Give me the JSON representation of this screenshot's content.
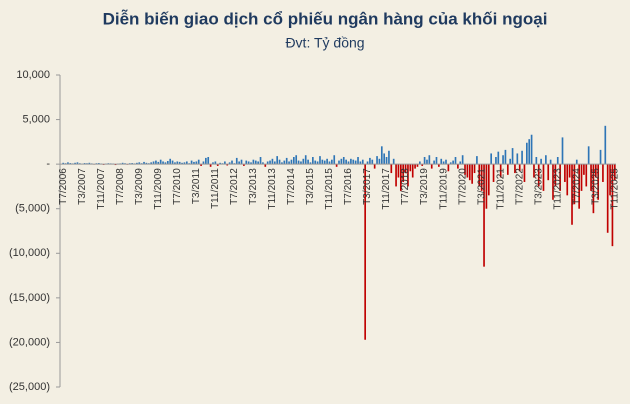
{
  "chart_data": {
    "type": "bar",
    "title": "Diễn biến giao dịch cổ phiếu ngân hàng của khối ngoại",
    "subtitle": "Đvt: Tỷ đồng",
    "colors": {
      "positive": "#2e75b6",
      "negative": "#c00000"
    },
    "ylim": [
      -25000,
      10000
    ],
    "yticks": [
      {
        "value": 10000,
        "label": "10,000"
      },
      {
        "value": 5000,
        "label": "5,000"
      },
      {
        "value": 0,
        "label": "-"
      },
      {
        "value": -5000,
        "label": "(5,000)"
      },
      {
        "value": -10000,
        "label": "(10,000)"
      },
      {
        "value": -15000,
        "label": "(15,000)"
      },
      {
        "value": -20000,
        "label": "(20,000)"
      },
      {
        "value": -25000,
        "label": "(25,000)"
      }
    ],
    "categories": [
      "T7/2006",
      null,
      null,
      null,
      null,
      null,
      null,
      null,
      "T3/2007",
      null,
      null,
      null,
      null,
      null,
      null,
      null,
      "T11/2007",
      null,
      null,
      null,
      null,
      null,
      null,
      null,
      "T7/2008",
      null,
      null,
      null,
      null,
      null,
      null,
      null,
      "T3/2009",
      null,
      null,
      null,
      null,
      null,
      null,
      null,
      "T11/2009",
      null,
      null,
      null,
      null,
      null,
      null,
      null,
      "T7/2010",
      null,
      null,
      null,
      null,
      null,
      null,
      null,
      "T3/2011",
      null,
      null,
      null,
      null,
      null,
      null,
      null,
      "T11/2011",
      null,
      null,
      null,
      null,
      null,
      null,
      null,
      "T7/2012",
      null,
      null,
      null,
      null,
      null,
      null,
      null,
      "T3/2013",
      null,
      null,
      null,
      null,
      null,
      null,
      null,
      "T11/2013",
      null,
      null,
      null,
      null,
      null,
      null,
      null,
      "T7/2014",
      null,
      null,
      null,
      null,
      null,
      null,
      null,
      "T3/2015",
      null,
      null,
      null,
      null,
      null,
      null,
      null,
      "T11/2015",
      null,
      null,
      null,
      null,
      null,
      null,
      null,
      "T7/2016",
      null,
      null,
      null,
      null,
      null,
      null,
      null,
      "T3/2017",
      null,
      null,
      null,
      null,
      null,
      null,
      null,
      "T11/2017",
      null,
      null,
      null,
      null,
      null,
      null,
      null,
      "T7/2018",
      null,
      null,
      null,
      null,
      null,
      null,
      null,
      "T3/2019",
      null,
      null,
      null,
      null,
      null,
      null,
      null,
      "T11/2019",
      null,
      null,
      null,
      null,
      null,
      null,
      null,
      "T7/2020",
      null,
      null,
      null,
      null,
      null,
      null,
      null,
      "T3/2021",
      null,
      null,
      null,
      null,
      null,
      null,
      null,
      "T11/2021",
      null,
      null,
      null,
      null,
      null,
      null,
      null,
      "T7/2022",
      null,
      null,
      null,
      null,
      null,
      null,
      null,
      "T3/2023",
      null,
      null,
      null,
      null,
      null,
      null,
      null,
      "T11/2023",
      null,
      null,
      null,
      null,
      null,
      null,
      null,
      "T7/2024",
      null,
      null,
      null,
      null,
      null,
      null,
      null,
      "T3/2025",
      null,
      null,
      null,
      null,
      null,
      null,
      null,
      "T11/2025"
    ],
    "values": [
      150,
      100,
      200,
      120,
      80,
      150,
      200,
      100,
      50,
      120,
      100,
      150,
      80,
      -50,
      100,
      120,
      60,
      -80,
      50,
      100,
      80,
      60,
      -100,
      50,
      80,
      150,
      100,
      -60,
      100,
      120,
      80,
      150,
      200,
      100,
      250,
      150,
      100,
      200,
      300,
      400,
      250,
      500,
      300,
      200,
      350,
      600,
      400,
      200,
      300,
      250,
      150,
      200,
      300,
      100,
      400,
      250,
      300,
      500,
      -200,
      300,
      700,
      800,
      -300,
      200,
      300,
      -200,
      150,
      100,
      300,
      -150,
      200,
      400,
      100,
      700,
      300,
      500,
      -200,
      400,
      300,
      200,
      500,
      400,
      300,
      800,
      200,
      -300,
      300,
      400,
      600,
      300,
      900,
      500,
      200,
      400,
      700,
      300,
      500,
      800,
      1000,
      400,
      300,
      600,
      1000,
      500,
      200,
      800,
      400,
      300,
      900,
      500,
      400,
      600,
      300,
      500,
      1000,
      -300,
      400,
      600,
      800,
      500,
      300,
      600,
      500,
      400,
      800,
      300,
      500,
      -19700,
      300,
      700,
      500,
      -500,
      900,
      600,
      2000,
      1200,
      800,
      1500,
      -1000,
      600,
      -2500,
      -1500,
      -3000,
      -2000,
      -1000,
      -2500,
      -800,
      -1500,
      -500,
      -300,
      300,
      -200,
      800,
      500,
      1000,
      -500,
      400,
      800,
      -300,
      600,
      300,
      500,
      -800,
      200,
      400,
      800,
      -500,
      300,
      1000,
      -1200,
      -1500,
      -1800,
      -2200,
      -1000,
      900,
      -2500,
      -3000,
      -11500,
      -5000,
      -3500,
      1200,
      -2000,
      800,
      1400,
      -1500,
      1000,
      1600,
      -1200,
      600,
      1800,
      -1000,
      1200,
      -800,
      1500,
      -2000,
      2400,
      2800,
      3300,
      -1500,
      800,
      -2500,
      600,
      -3000,
      1000,
      -1800,
      500,
      -4000,
      -2500,
      800,
      -3000,
      3000,
      -2000,
      -3500,
      -1500,
      -6800,
      -4500,
      500,
      -5000,
      -3000,
      -1200,
      -2500,
      2000,
      -3000,
      -5500,
      -1500,
      -4000,
      1600,
      -2000,
      4300,
      -7700,
      -3500,
      -9200,
      -1800
    ]
  }
}
